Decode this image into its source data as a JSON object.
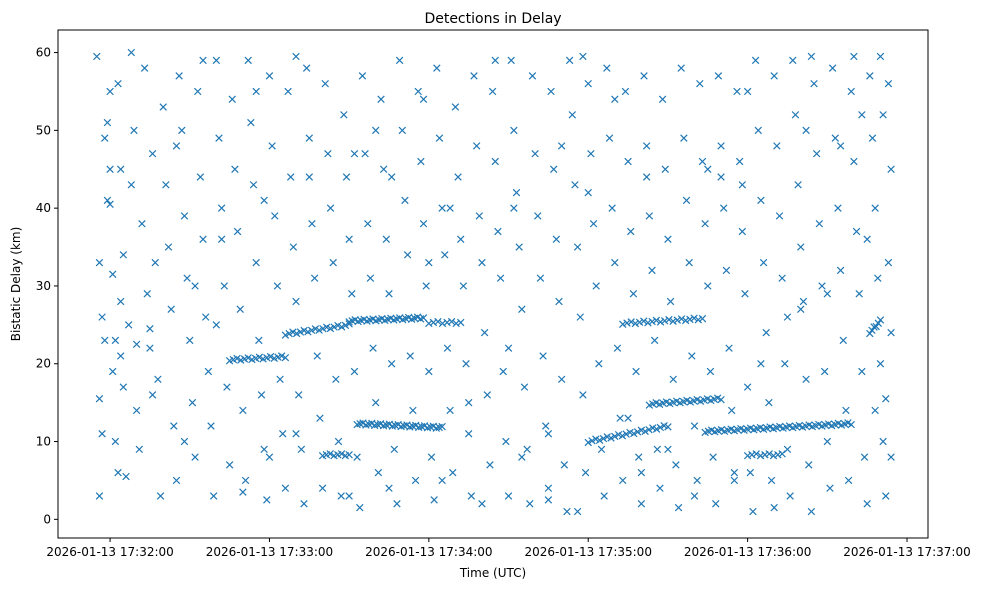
{
  "chart_data": {
    "type": "scatter",
    "title": "Detections in Delay",
    "xlabel": "Time (UTC)",
    "ylabel": "Bistatic Delay (km)",
    "x_unit": "seconds after 2026-01-13 17:31:00 UTC",
    "xlim": [
      40.4,
      367.9
    ],
    "ylim": [
      -2.4,
      62.9
    ],
    "xticks": [
      60,
      120,
      180,
      240,
      300,
      360
    ],
    "xtick_labels": [
      "2026-01-13 17:32:00",
      "2026-01-13 17:33:00",
      "2026-01-13 17:34:00",
      "2026-01-13 17:35:00",
      "2026-01-13 17:36:00",
      "2026-01-13 17:37:00"
    ],
    "yticks": [
      0,
      10,
      20,
      30,
      40,
      50,
      60
    ],
    "ytick_labels": [
      "0",
      "10",
      "20",
      "30",
      "40",
      "50",
      "60"
    ],
    "grid": false,
    "marker": "x",
    "color": "#1f77b4",
    "tracks": [
      {
        "t0": 105,
        "t1": 126,
        "y0": 20.5,
        "y1": 20.9,
        "n": 16
      },
      {
        "t0": 126,
        "t1": 150,
        "y0": 23.8,
        "y1": 25.0,
        "n": 18
      },
      {
        "t0": 150,
        "t1": 178,
        "y0": 25.5,
        "y1": 25.9,
        "n": 26
      },
      {
        "t0": 153,
        "t1": 185,
        "y0": 12.3,
        "y1": 11.8,
        "n": 30
      },
      {
        "t0": 140,
        "t1": 150,
        "y0": 8.3,
        "y1": 8.3,
        "n": 8
      },
      {
        "t0": 180,
        "t1": 192,
        "y0": 25.3,
        "y1": 25.3,
        "n": 8
      },
      {
        "t0": 253,
        "t1": 283,
        "y0": 25.2,
        "y1": 25.8,
        "n": 20
      },
      {
        "t0": 263,
        "t1": 290,
        "y0": 14.8,
        "y1": 15.5,
        "n": 22
      },
      {
        "t0": 240,
        "t1": 270,
        "y0": 10.0,
        "y1": 12.0,
        "n": 22
      },
      {
        "t0": 284,
        "t1": 339,
        "y0": 11.3,
        "y1": 12.3,
        "n": 46
      },
      {
        "t0": 300,
        "t1": 313,
        "y0": 8.3,
        "y1": 8.3,
        "n": 9
      },
      {
        "t0": 346,
        "t1": 350,
        "y0": 24.0,
        "y1": 25.5,
        "n": 6
      }
    ],
    "points": [
      [
        55,
        59.5
      ],
      [
        56,
        33
      ],
      [
        57,
        26
      ],
      [
        58,
        23
      ],
      [
        56,
        15.5
      ],
      [
        57,
        11
      ],
      [
        56,
        3
      ],
      [
        58,
        49
      ],
      [
        59,
        51
      ],
      [
        60,
        55
      ],
      [
        59,
        41
      ],
      [
        60,
        40.5
      ],
      [
        61,
        31.5
      ],
      [
        62,
        23
      ],
      [
        61,
        19
      ],
      [
        62,
        10
      ],
      [
        63,
        6
      ],
      [
        60,
        45
      ],
      [
        63,
        56
      ],
      [
        64,
        45
      ],
      [
        65,
        34
      ],
      [
        64,
        28
      ],
      [
        65,
        17
      ],
      [
        66,
        5.5
      ],
      [
        67,
        25
      ],
      [
        68,
        43
      ],
      [
        69,
        50
      ],
      [
        70,
        14
      ],
      [
        71,
        9
      ],
      [
        72,
        38
      ],
      [
        73,
        58
      ],
      [
        74,
        29
      ],
      [
        75,
        22
      ],
      [
        76,
        47
      ],
      [
        77,
        33
      ],
      [
        78,
        18
      ],
      [
        79,
        3
      ],
      [
        80,
        53
      ],
      [
        81,
        43
      ],
      [
        82,
        35
      ],
      [
        83,
        27
      ],
      [
        84,
        12
      ],
      [
        85,
        5
      ],
      [
        86,
        57
      ],
      [
        87,
        50
      ],
      [
        88,
        39
      ],
      [
        89,
        31
      ],
      [
        90,
        23
      ],
      [
        91,
        15
      ],
      [
        92,
        8
      ],
      [
        93,
        55
      ],
      [
        94,
        44
      ],
      [
        95,
        36
      ],
      [
        96,
        26
      ],
      [
        97,
        19
      ],
      [
        98,
        12
      ],
      [
        99,
        3
      ],
      [
        100,
        59
      ],
      [
        101,
        49
      ],
      [
        102,
        40
      ],
      [
        103,
        30
      ],
      [
        104,
        17
      ],
      [
        105,
        7
      ],
      [
        106,
        54
      ],
      [
        107,
        45
      ],
      [
        108,
        37
      ],
      [
        109,
        27
      ],
      [
        110,
        14
      ],
      [
        111,
        5
      ],
      [
        112,
        59
      ],
      [
        113,
        51
      ],
      [
        114,
        43
      ],
      [
        115,
        33
      ],
      [
        116,
        23
      ],
      [
        117,
        16
      ],
      [
        118,
        9
      ],
      [
        119,
        2.5
      ],
      [
        120,
        57
      ],
      [
        121,
        48
      ],
      [
        122,
        39
      ],
      [
        123,
        30
      ],
      [
        124,
        18
      ],
      [
        125,
        11
      ],
      [
        126,
        4
      ],
      [
        127,
        55
      ],
      [
        128,
        44
      ],
      [
        129,
        35
      ],
      [
        130,
        28
      ],
      [
        131,
        16
      ],
      [
        132,
        9
      ],
      [
        133,
        2
      ],
      [
        134,
        58
      ],
      [
        135,
        49
      ],
      [
        136,
        38
      ],
      [
        137,
        31
      ],
      [
        138,
        21
      ],
      [
        139,
        13
      ],
      [
        140,
        4
      ],
      [
        141,
        56
      ],
      [
        142,
        47
      ],
      [
        143,
        40
      ],
      [
        144,
        33
      ],
      [
        145,
        18
      ],
      [
        146,
        10
      ],
      [
        147,
        3
      ],
      [
        148,
        52
      ],
      [
        149,
        44
      ],
      [
        150,
        36
      ],
      [
        151,
        29
      ],
      [
        152,
        19
      ],
      [
        153,
        8
      ],
      [
        154,
        1.5
      ],
      [
        155,
        57
      ],
      [
        156,
        47
      ],
      [
        157,
        38
      ],
      [
        158,
        31
      ],
      [
        159,
        22
      ],
      [
        160,
        15
      ],
      [
        161,
        6
      ],
      [
        162,
        54
      ],
      [
        163,
        45
      ],
      [
        164,
        36
      ],
      [
        165,
        29
      ],
      [
        166,
        20
      ],
      [
        167,
        9
      ],
      [
        168,
        2
      ],
      [
        169,
        59
      ],
      [
        170,
        50
      ],
      [
        171,
        41
      ],
      [
        172,
        34
      ],
      [
        173,
        21
      ],
      [
        174,
        14
      ],
      [
        175,
        5
      ],
      [
        176,
        55
      ],
      [
        177,
        46
      ],
      [
        178,
        38
      ],
      [
        179,
        30
      ],
      [
        180,
        19
      ],
      [
        181,
        8
      ],
      [
        182,
        2.5
      ],
      [
        183,
        58
      ],
      [
        184,
        49
      ],
      [
        185,
        40
      ],
      [
        186,
        34
      ],
      [
        187,
        22
      ],
      [
        188,
        14
      ],
      [
        189,
        6
      ],
      [
        190,
        53
      ],
      [
        191,
        44
      ],
      [
        192,
        36
      ],
      [
        193,
        30
      ],
      [
        194,
        20
      ],
      [
        195,
        11
      ],
      [
        196,
        3
      ],
      [
        197,
        57
      ],
      [
        198,
        48
      ],
      [
        199,
        39
      ],
      [
        200,
        33
      ],
      [
        201,
        24
      ],
      [
        202,
        16
      ],
      [
        203,
        7
      ],
      [
        204,
        55
      ],
      [
        205,
        46
      ],
      [
        206,
        37
      ],
      [
        207,
        31
      ],
      [
        208,
        19
      ],
      [
        209,
        10
      ],
      [
        210,
        3
      ],
      [
        211,
        59
      ],
      [
        212,
        50
      ],
      [
        213,
        42
      ],
      [
        214,
        35
      ],
      [
        215,
        27
      ],
      [
        216,
        17
      ],
      [
        217,
        9
      ],
      [
        218,
        2
      ],
      [
        219,
        57
      ],
      [
        220,
        47
      ],
      [
        221,
        39
      ],
      [
        222,
        31
      ],
      [
        223,
        21
      ],
      [
        224,
        12
      ],
      [
        225,
        4
      ],
      [
        226,
        55
      ],
      [
        227,
        45
      ],
      [
        228,
        36
      ],
      [
        229,
        28
      ],
      [
        230,
        18
      ],
      [
        231,
        7
      ],
      [
        232,
        1
      ],
      [
        233,
        59
      ],
      [
        234,
        52
      ],
      [
        235,
        43
      ],
      [
        236,
        35
      ],
      [
        237,
        26
      ],
      [
        238,
        16
      ],
      [
        239,
        6
      ],
      [
        240,
        56
      ],
      [
        241,
        47
      ],
      [
        242,
        38
      ],
      [
        243,
        30
      ],
      [
        244,
        20
      ],
      [
        245,
        9
      ],
      [
        246,
        3
      ],
      [
        247,
        58
      ],
      [
        248,
        49
      ],
      [
        249,
        40
      ],
      [
        250,
        33
      ],
      [
        251,
        22
      ],
      [
        252,
        13
      ],
      [
        253,
        5
      ],
      [
        254,
        55
      ],
      [
        255,
        46
      ],
      [
        256,
        37
      ],
      [
        257,
        29
      ],
      [
        258,
        19
      ],
      [
        259,
        8
      ],
      [
        260,
        2
      ],
      [
        261,
        57
      ],
      [
        262,
        48
      ],
      [
        263,
        39
      ],
      [
        264,
        32
      ],
      [
        265,
        23
      ],
      [
        266,
        9
      ],
      [
        267,
        4
      ],
      [
        268,
        54
      ],
      [
        269,
        45
      ],
      [
        270,
        36
      ],
      [
        271,
        28
      ],
      [
        272,
        18
      ],
      [
        273,
        7
      ],
      [
        274,
        1.5
      ],
      [
        275,
        58
      ],
      [
        276,
        49
      ],
      [
        277,
        41
      ],
      [
        278,
        33
      ],
      [
        279,
        21
      ],
      [
        280,
        12
      ],
      [
        281,
        5
      ],
      [
        282,
        56
      ],
      [
        283,
        46
      ],
      [
        284,
        38
      ],
      [
        285,
        30
      ],
      [
        286,
        19
      ],
      [
        287,
        8
      ],
      [
        288,
        2
      ],
      [
        289,
        57
      ],
      [
        290,
        48
      ],
      [
        291,
        40
      ],
      [
        292,
        32
      ],
      [
        293,
        22
      ],
      [
        294,
        14
      ],
      [
        295,
        5
      ],
      [
        296,
        55
      ],
      [
        297,
        46
      ],
      [
        298,
        37
      ],
      [
        299,
        29
      ],
      [
        300,
        17
      ],
      [
        301,
        6
      ],
      [
        302,
        1
      ],
      [
        303,
        59
      ],
      [
        304,
        50
      ],
      [
        305,
        41
      ],
      [
        306,
        33
      ],
      [
        307,
        24
      ],
      [
        308,
        15
      ],
      [
        309,
        5
      ],
      [
        310,
        57
      ],
      [
        311,
        48
      ],
      [
        312,
        39
      ],
      [
        313,
        31
      ],
      [
        314,
        20
      ],
      [
        315,
        9
      ],
      [
        316,
        3
      ],
      [
        317,
        59
      ],
      [
        318,
        52
      ],
      [
        319,
        43
      ],
      [
        320,
        35
      ],
      [
        321,
        28
      ],
      [
        322,
        18
      ],
      [
        323,
        7
      ],
      [
        324,
        1
      ],
      [
        325,
        56
      ],
      [
        326,
        47
      ],
      [
        327,
        38
      ],
      [
        328,
        30
      ],
      [
        329,
        19
      ],
      [
        330,
        10
      ],
      [
        331,
        4
      ],
      [
        332,
        58
      ],
      [
        333,
        49
      ],
      [
        334,
        40
      ],
      [
        335,
        32
      ],
      [
        336,
        23
      ],
      [
        337,
        14
      ],
      [
        338,
        5
      ],
      [
        339,
        55
      ],
      [
        340,
        46
      ],
      [
        341,
        37
      ],
      [
        342,
        29
      ],
      [
        343,
        19
      ],
      [
        344,
        8
      ],
      [
        345,
        2
      ],
      [
        346,
        57
      ],
      [
        347,
        49
      ],
      [
        348,
        40
      ],
      [
        349,
        31
      ],
      [
        350,
        20
      ],
      [
        351,
        10
      ],
      [
        352,
        3
      ],
      [
        353,
        56
      ],
      [
        354,
        45
      ],
      [
        353,
        33
      ],
      [
        354,
        24
      ],
      [
        352,
        15.5
      ],
      [
        354,
        8
      ],
      [
        350,
        59.5
      ],
      [
        351,
        52
      ],
      [
        348,
        14
      ],
      [
        345,
        36
      ],
      [
        68,
        60
      ],
      [
        95,
        59
      ],
      [
        130,
        59.5
      ],
      [
        205,
        59
      ],
      [
        238,
        59.5
      ],
      [
        324,
        59.5
      ],
      [
        340,
        59.5
      ],
      [
        115,
        55
      ],
      [
        178,
        54
      ],
      [
        250,
        54
      ],
      [
        300,
        55
      ],
      [
        85,
        48
      ],
      [
        160,
        50
      ],
      [
        230,
        48
      ],
      [
        290,
        44
      ],
      [
        100,
        25
      ],
      [
        70,
        22.5
      ],
      [
        75,
        24.5
      ],
      [
        180,
        33
      ],
      [
        210,
        22
      ],
      [
        320,
        27
      ],
      [
        330,
        29
      ],
      [
        260,
        6
      ],
      [
        280,
        3
      ],
      [
        150,
        3
      ],
      [
        110,
        3.5
      ],
      [
        200,
        2
      ],
      [
        225,
        2.5
      ],
      [
        236,
        1
      ],
      [
        310,
        1.5
      ],
      [
        255,
        13
      ],
      [
        270,
        9
      ],
      [
        225,
        11
      ],
      [
        215,
        8
      ],
      [
        195,
        15
      ],
      [
        185,
        5
      ],
      [
        165,
        4
      ],
      [
        120,
        8
      ],
      [
        130,
        11
      ],
      [
        295,
        6
      ],
      [
        305,
        20
      ],
      [
        315,
        26
      ],
      [
        285,
        45
      ],
      [
        335,
        48
      ],
      [
        88,
        10
      ],
      [
        76,
        16
      ],
      [
        64,
        21
      ],
      [
        92,
        30
      ],
      [
        102,
        36
      ],
      [
        118,
        41
      ],
      [
        135,
        44
      ],
      [
        152,
        47
      ],
      [
        166,
        44
      ],
      [
        188,
        40
      ],
      [
        212,
        40
      ],
      [
        240,
        42
      ],
      [
        262,
        44
      ],
      [
        298,
        43
      ],
      [
        322,
        50
      ],
      [
        343,
        52
      ]
    ]
  }
}
